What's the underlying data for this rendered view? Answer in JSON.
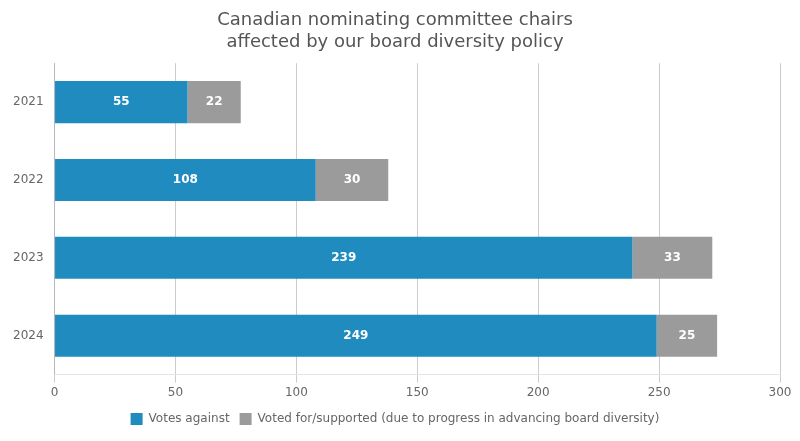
{
  "chart_data": {
    "type": "bar",
    "orientation": "horizontal",
    "stacked": true,
    "title": "Canadian nominating committee chairs\naffected by our board diversity policy",
    "categories": [
      "2021",
      "2022",
      "2023",
      "2024"
    ],
    "series": [
      {
        "name": "Votes against",
        "color": "#1F8BBF",
        "values": [
          55,
          108,
          239,
          249
        ]
      },
      {
        "name": "Voted for/supported (due to progress in advancing board diversity)",
        "color": "#9B9B9B",
        "values": [
          22,
          30,
          33,
          25
        ]
      }
    ],
    "xlim": [
      0,
      300
    ],
    "xticks": [
      0,
      50,
      100,
      150,
      200,
      250,
      300
    ],
    "grid": "x",
    "data_labels": true,
    "legend": "bottom"
  }
}
